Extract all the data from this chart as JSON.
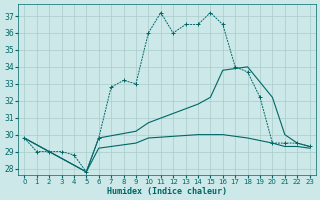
{
  "xlabel": "Humidex (Indice chaleur)",
  "bg_color": "#cce8e8",
  "grid_color": "#aacccc",
  "line_color": "#006666",
  "xlim": [
    -0.5,
    23.5
  ],
  "ylim": [
    27.6,
    37.7
  ],
  "xticks": [
    0,
    1,
    2,
    3,
    4,
    5,
    6,
    7,
    8,
    9,
    10,
    11,
    12,
    13,
    14,
    15,
    16,
    17,
    18,
    19,
    20,
    21,
    22,
    23
  ],
  "yticks": [
    28,
    29,
    30,
    31,
    32,
    33,
    34,
    35,
    36,
    37
  ],
  "line1_x": [
    0,
    1,
    2,
    3,
    4,
    5,
    6,
    7,
    8,
    9,
    10,
    11,
    12,
    13,
    14,
    15,
    16,
    17,
    18,
    19,
    20,
    21,
    22,
    23
  ],
  "line1_y": [
    29.8,
    29.0,
    29.0,
    29.0,
    28.8,
    27.8,
    29.8,
    32.8,
    33.2,
    33.0,
    36.0,
    37.2,
    36.0,
    36.5,
    36.5,
    37.2,
    36.5,
    34.0,
    33.7,
    32.2,
    29.5,
    29.5,
    29.5,
    29.3
  ],
  "line2_x": [
    0,
    2,
    5,
    6,
    9,
    10,
    14,
    15,
    16,
    18,
    20,
    21,
    22,
    23
  ],
  "line2_y": [
    29.8,
    29.0,
    27.8,
    29.8,
    30.2,
    30.7,
    31.8,
    32.2,
    33.8,
    34.0,
    32.2,
    30.0,
    29.5,
    29.3
  ],
  "line3_x": [
    0,
    2,
    5,
    6,
    9,
    10,
    14,
    15,
    16,
    18,
    20,
    21,
    22,
    23
  ],
  "line3_y": [
    29.8,
    29.0,
    27.8,
    29.2,
    29.5,
    29.8,
    30.0,
    30.0,
    30.0,
    29.8,
    29.5,
    29.3,
    29.3,
    29.2
  ]
}
